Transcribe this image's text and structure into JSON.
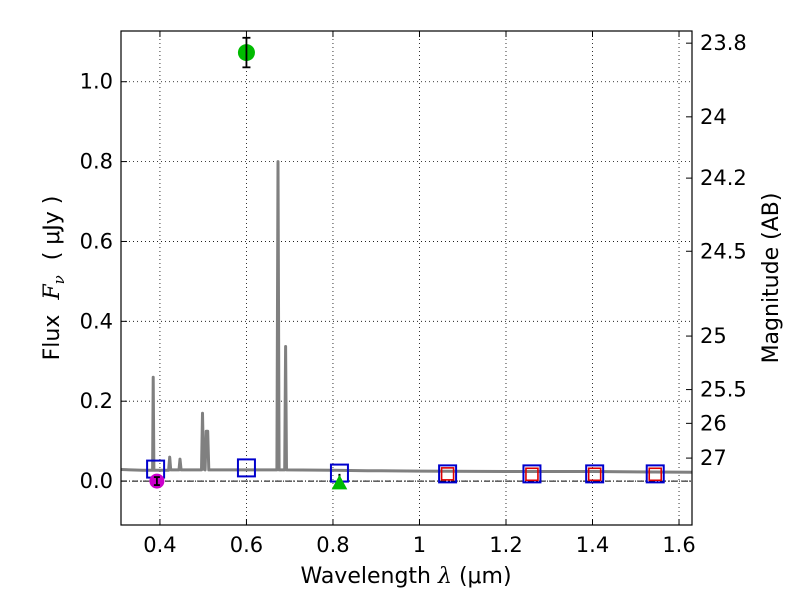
{
  "chart_data": {
    "type": "scatter",
    "xlabel_text": "Wavelength",
    "xlabel_symbol": "λ",
    "xlabel_unit": "(μm)",
    "ylabel_text": "Flux",
    "ylabel_symbol": "F",
    "ylabel_subscript": "ν",
    "ylabel_unit": "( μJy )",
    "y2label": "Magnitude (AB)",
    "xlim": [
      0.31,
      1.63
    ],
    "ylim": [
      -0.11,
      1.127
    ],
    "grid": true,
    "x_ticks": [
      {
        "value": 0.4,
        "label": "0.4"
      },
      {
        "value": 0.6,
        "label": "0.6"
      },
      {
        "value": 0.8,
        "label": "0.8"
      },
      {
        "value": 1.0,
        "label": "1"
      },
      {
        "value": 1.2,
        "label": "1.2"
      },
      {
        "value": 1.4,
        "label": "1.4"
      },
      {
        "value": 1.6,
        "label": "1.6"
      }
    ],
    "y_ticks": [
      {
        "value": 0.0,
        "label": "0.0"
      },
      {
        "value": 0.2,
        "label": "0.2"
      },
      {
        "value": 0.4,
        "label": "0.4"
      },
      {
        "value": 0.6,
        "label": "0.6"
      },
      {
        "value": 0.8,
        "label": "0.8"
      },
      {
        "value": 1.0,
        "label": "1.0"
      }
    ],
    "mag_ticks": [
      {
        "mag": 23.8,
        "label": "23.8"
      },
      {
        "mag": 24.0,
        "label": "24"
      },
      {
        "mag": 24.2,
        "label": "24.2"
      },
      {
        "mag": 24.5,
        "label": "24.5"
      },
      {
        "mag": 25.0,
        "label": "25"
      },
      {
        "mag": 25.5,
        "label": "25.5"
      },
      {
        "mag": 26.0,
        "label": "26"
      },
      {
        "mag": 27.0,
        "label": "27"
      }
    ],
    "model_spectrum": {
      "name": "SED model",
      "color": "#808080",
      "points": [
        [
          0.31,
          0.029
        ],
        [
          0.36,
          0.027
        ],
        [
          0.383,
          0.027
        ],
        [
          0.3845,
          0.26
        ],
        [
          0.386,
          0.027
        ],
        [
          0.42,
          0.027
        ],
        [
          0.4225,
          0.06
        ],
        [
          0.425,
          0.028
        ],
        [
          0.444,
          0.028
        ],
        [
          0.4465,
          0.055
        ],
        [
          0.449,
          0.028
        ],
        [
          0.496,
          0.028
        ],
        [
          0.4985,
          0.17
        ],
        [
          0.501,
          0.03
        ],
        [
          0.5045,
          0.028
        ],
        [
          0.507,
          0.125
        ],
        [
          0.5105,
          0.125
        ],
        [
          0.513,
          0.028
        ],
        [
          0.6705,
          0.028
        ],
        [
          0.673,
          0.8
        ],
        [
          0.6755,
          0.028
        ],
        [
          0.6885,
          0.028
        ],
        [
          0.6905,
          0.337
        ],
        [
          0.6925,
          0.028
        ],
        [
          0.8,
          0.027
        ],
        [
          0.88,
          0.026
        ],
        [
          1.0,
          0.025
        ],
        [
          1.2,
          0.024
        ],
        [
          1.4,
          0.024
        ],
        [
          1.63,
          0.022
        ]
      ]
    },
    "upper_limits": {
      "name": "Upper limits (blue squares)",
      "color": "#0000cc",
      "points": [
        {
          "x": 0.39,
          "y": 0.03
        },
        {
          "x": 0.6,
          "y": 0.033
        },
        {
          "x": 0.815,
          "y": 0.02
        },
        {
          "x": 1.065,
          "y": 0.018
        },
        {
          "x": 1.26,
          "y": 0.018
        },
        {
          "x": 1.405,
          "y": 0.018
        },
        {
          "x": 1.545,
          "y": 0.018
        }
      ]
    },
    "model_photometry": {
      "name": "Model band flux (red squares)",
      "color": "#dd0000",
      "points": [
        {
          "x": 1.065,
          "y": 0.018
        },
        {
          "x": 1.26,
          "y": 0.017
        },
        {
          "x": 1.405,
          "y": 0.017
        },
        {
          "x": 1.545,
          "y": 0.017
        }
      ]
    },
    "detection_green": {
      "name": "Detection (green circle)",
      "color": "#00bb00",
      "x": 0.6,
      "y": 1.073,
      "err": 0.037
    },
    "detection_magenta": {
      "name": "Detection (magenta circle)",
      "color": "#cc00cc",
      "x": 0.393,
      "y": 0.0,
      "err": 0.01
    },
    "detection_triangle": {
      "name": "Marker (green triangle)",
      "color": "#00bb00",
      "x": 0.815,
      "y": -0.002
    }
  }
}
